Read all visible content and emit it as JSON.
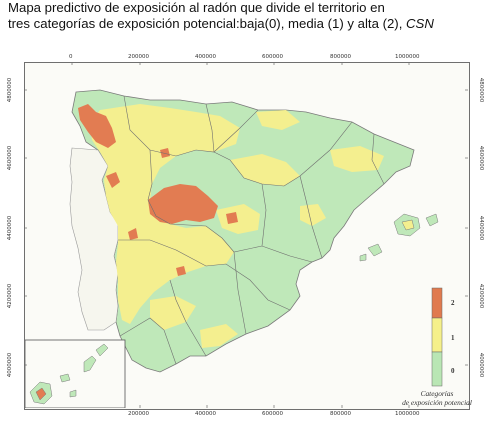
{
  "caption": {
    "line1": "Mapa predictivo de exposición al radón que divide el territorio en",
    "line2": "tres categorías de exposición potencial:baja(0), media (1) y alta (2), ",
    "source": "CSN"
  },
  "axes": {
    "x_ticks": [
      "0",
      "200000",
      "400000",
      "600000",
      "800000",
      "1000000"
    ],
    "y_ticks_left": [
      "4800000",
      "4600000",
      "4400000",
      "4200000",
      "4000000"
    ],
    "y_ticks_right": [
      "4800000",
      "4600000",
      "4400000",
      "4200000",
      "4000000"
    ]
  },
  "legend": {
    "title_line1": "Categorías",
    "title_line2": "de exposición potencial",
    "levels": [
      {
        "label": "2",
        "color": "#e07a4f",
        "meaning": "alta"
      },
      {
        "label": "1",
        "color": "#f5f08a",
        "meaning": "media"
      },
      {
        "label": "0",
        "color": "#b9e6b4",
        "meaning": "baja"
      }
    ]
  },
  "colors": {
    "low": "#bfe8b9",
    "medium": "#f4ef8f",
    "high": "#e27c52",
    "sea": "#fbfbf7",
    "border": "#707070"
  }
}
